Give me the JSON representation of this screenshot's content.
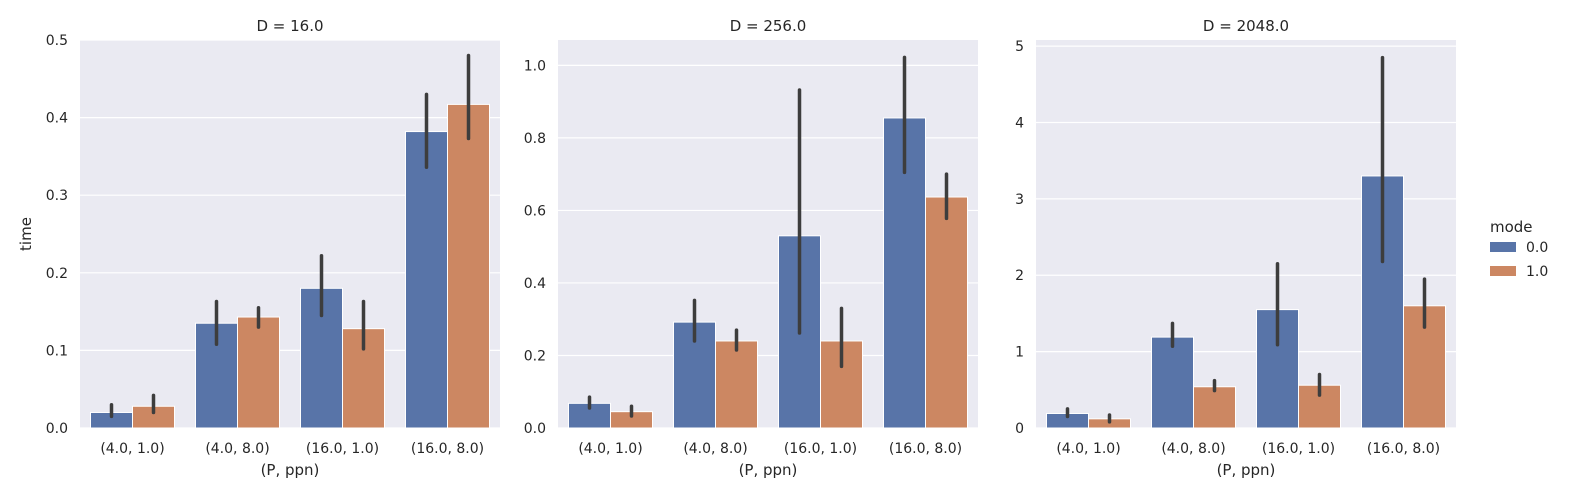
{
  "colors": {
    "mode_0": "#5874a8",
    "mode_1": "#cc8762",
    "panel_bg": "#eaeaf2",
    "grid": "#ffffff",
    "error_bar": "#3d3d3d"
  },
  "legend": {
    "title": "mode",
    "entries": [
      "0.0",
      "1.0"
    ],
    "placement": "right"
  },
  "chart_data": [
    {
      "type": "bar",
      "title": "D = 16.0",
      "xlabel": "(P, ppn)",
      "ylabel": "time",
      "categories": [
        "(4.0, 1.0)",
        "(4.0, 8.0)",
        "(16.0, 1.0)",
        "(16.0, 8.0)"
      ],
      "ylim": [
        0,
        0.5
      ],
      "yticks": [
        0.0,
        0.1,
        0.2,
        0.3,
        0.4,
        0.5
      ],
      "ytick_labels": [
        "0.0",
        "0.1",
        "0.2",
        "0.3",
        "0.4",
        "0.5"
      ],
      "grid": true,
      "series": [
        {
          "name": "0.0",
          "values": [
            0.02,
            0.135,
            0.18,
            0.382
          ],
          "ci_low": [
            0.015,
            0.108,
            0.145,
            0.336
          ],
          "ci_high": [
            0.03,
            0.163,
            0.222,
            0.43
          ]
        },
        {
          "name": "1.0",
          "values": [
            0.028,
            0.143,
            0.128,
            0.417
          ],
          "ci_low": [
            0.02,
            0.13,
            0.102,
            0.373
          ],
          "ci_high": [
            0.042,
            0.155,
            0.163,
            0.48
          ]
        }
      ]
    },
    {
      "type": "bar",
      "title": "D = 256.0",
      "xlabel": "(P, ppn)",
      "ylabel": "",
      "categories": [
        "(4.0, 1.0)",
        "(4.0, 8.0)",
        "(16.0, 1.0)",
        "(16.0, 8.0)"
      ],
      "ylim": [
        0,
        1.07
      ],
      "yticks": [
        0.0,
        0.2,
        0.4,
        0.6,
        0.8,
        1.0
      ],
      "ytick_labels": [
        "0.0",
        "0.2",
        "0.4",
        "0.6",
        "0.8",
        "1.0"
      ],
      "grid": true,
      "series": [
        {
          "name": "0.0",
          "values": [
            0.068,
            0.292,
            0.53,
            0.855
          ],
          "ci_low": [
            0.055,
            0.24,
            0.262,
            0.705
          ],
          "ci_high": [
            0.085,
            0.352,
            0.932,
            1.022
          ]
        },
        {
          "name": "1.0",
          "values": [
            0.045,
            0.24,
            0.24,
            0.637
          ],
          "ci_low": [
            0.033,
            0.215,
            0.17,
            0.578
          ],
          "ci_high": [
            0.06,
            0.27,
            0.33,
            0.7
          ]
        }
      ]
    },
    {
      "type": "bar",
      "title": "D = 2048.0",
      "xlabel": "(P, ppn)",
      "ylabel": "",
      "categories": [
        "(4.0, 1.0)",
        "(4.0, 8.0)",
        "(16.0, 1.0)",
        "(16.0, 8.0)"
      ],
      "ylim": [
        0,
        5.08
      ],
      "yticks": [
        0,
        1,
        2,
        3,
        4,
        5
      ],
      "ytick_labels": [
        "0",
        "1",
        "2",
        "3",
        "4",
        "5"
      ],
      "grid": true,
      "series": [
        {
          "name": "0.0",
          "values": [
            0.19,
            1.19,
            1.55,
            3.3
          ],
          "ci_low": [
            0.15,
            1.07,
            1.09,
            2.18
          ],
          "ci_high": [
            0.25,
            1.37,
            2.15,
            4.85
          ]
        },
        {
          "name": "1.0",
          "values": [
            0.12,
            0.54,
            0.56,
            1.6
          ],
          "ci_low": [
            0.08,
            0.49,
            0.43,
            1.32
          ],
          "ci_high": [
            0.17,
            0.62,
            0.7,
            1.95
          ]
        }
      ]
    }
  ]
}
